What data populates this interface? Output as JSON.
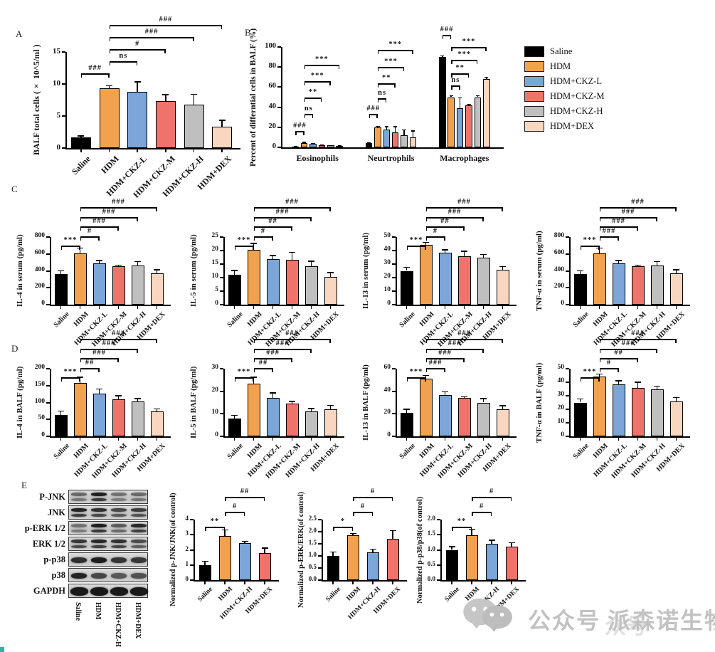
{
  "panels": {
    "a": "A",
    "b": "B",
    "c": "C",
    "d": "D",
    "e": "E"
  },
  "legend": {
    "items": [
      {
        "label": "Saline",
        "color": "#000000"
      },
      {
        "label": "HDM",
        "color": "#F2A24E"
      },
      {
        "label": "HDM+CKZ-L",
        "color": "#7CA5D8"
      },
      {
        "label": "HDM+CKZ-M",
        "color": "#F0736B"
      },
      {
        "label": "HDM+CKZ-H",
        "color": "#BFBFBF"
      },
      {
        "label": "HDM+DEX",
        "color": "#F9D6C0"
      }
    ]
  },
  "chart_data": [
    {
      "id": "A",
      "type": "bar",
      "ylabel": "BALF total cells (× 10^5/ml )",
      "categories": [
        "Saline",
        "HDM",
        "HDM+CKZ-L",
        "HDM+CKZ-M",
        "HDM+CKZ-H",
        "HDM+DEX"
      ],
      "values": [
        1.7,
        9.3,
        8.8,
        7.3,
        6.8,
        3.3
      ],
      "errors": [
        0.3,
        0.5,
        1.6,
        1.1,
        1.7,
        1.1
      ],
      "bar_colors": [
        "#000000",
        "#F2A24E",
        "#7CA5D8",
        "#F0736B",
        "#BFBFBF",
        "#F9D6C0"
      ],
      "yticks": [
        "0",
        "5",
        "10",
        "15"
      ],
      "ymax": 15,
      "sig": [
        {
          "from": 0,
          "to": 1,
          "label": "###",
          "row": 0
        },
        {
          "from": 1,
          "to": 2,
          "label": "ns",
          "row": 1
        },
        {
          "from": 1,
          "to": 3,
          "label": "#",
          "row": 2
        },
        {
          "from": 1,
          "to": 4,
          "label": "###",
          "row": 3
        },
        {
          "from": 1,
          "to": 5,
          "label": "###",
          "row": 4
        }
      ]
    },
    {
      "id": "B",
      "type": "grouped-bar",
      "ylabel": "Percent of differntial cells in BALF (%)",
      "series_names": [
        "Saline",
        "HDM",
        "HDM+CKZ-L",
        "HDM+CKZ-M",
        "HDM+CKZ-H",
        "HDM+DEX"
      ],
      "bar_colors": [
        "#000000",
        "#F2A24E",
        "#7CA5D8",
        "#F0736B",
        "#BFBFBF",
        "#F9D6C0"
      ],
      "yticks": [
        "0",
        "20",
        "40",
        "60",
        "80",
        "100"
      ],
      "ymax": 100,
      "legend_position": "right",
      "groups": [
        {
          "label": "Eosinophils",
          "values": [
            1,
            4.5,
            3.6,
            2,
            1.8,
            1.6
          ],
          "errors": [
            0.3,
            0.9,
            0.7,
            0.5,
            0.5,
            0.6
          ],
          "sig": [
            {
              "from": 0,
              "to": 1,
              "label": "###",
              "yf": 0.16
            },
            {
              "from": 1,
              "to": 2,
              "label": "ns",
              "yf": 0.33
            },
            {
              "from": 1,
              "to": 3,
              "label": "**",
              "yf": 0.5
            },
            {
              "from": 1,
              "to": 4,
              "label": "***",
              "yf": 0.66
            },
            {
              "from": 1,
              "to": 5,
              "label": "***",
              "yf": 0.82
            }
          ]
        },
        {
          "label": "Neurtrophils",
          "values": [
            4,
            20,
            18,
            15,
            12,
            10
          ],
          "errors": [
            1,
            1.5,
            3,
            6,
            6,
            7
          ],
          "sig": [
            {
              "from": 0,
              "to": 1,
              "label": "###",
              "yf": 0.33
            },
            {
              "from": 1,
              "to": 2,
              "label": "ns",
              "yf": 0.49
            },
            {
              "from": 1,
              "to": 3,
              "label": "**",
              "yf": 0.64
            },
            {
              "from": 1,
              "to": 4,
              "label": "***",
              "yf": 0.8
            },
            {
              "from": 1,
              "to": 5,
              "label": "***",
              "yf": 0.97
            }
          ]
        },
        {
          "label": "Macrophages",
          "values": [
            90,
            50,
            39,
            42,
            50,
            68
          ],
          "errors": [
            1.5,
            2,
            11,
            1.5,
            2,
            2.5
          ],
          "sig": [
            {
              "from": 0,
              "to": 1,
              "label": "###",
              "yf": 1.12
            },
            {
              "from": 1,
              "to": 2,
              "label": "ns",
              "yf": 0.62
            },
            {
              "from": 1,
              "to": 3,
              "label": "**",
              "yf": 0.74
            },
            {
              "from": 1,
              "to": 4,
              "label": "***",
              "yf": 0.87
            },
            {
              "from": 1,
              "to": 5,
              "label": "***",
              "yf": 1.0
            }
          ]
        }
      ]
    },
    {
      "id": "C1",
      "type": "bar",
      "ylabel": "IL-4 in serum (pg/ml)",
      "categories": [
        "Saline",
        "HDM",
        "HDM+CKZ-L",
        "HDM+CKZ-M",
        "HDM+CKZ-H",
        "HDM+DEX"
      ],
      "values": [
        360,
        610,
        490,
        455,
        460,
        370
      ],
      "errors": [
        45,
        65,
        40,
        20,
        55,
        50
      ],
      "bar_colors": [
        "#000000",
        "#F2A24E",
        "#7CA5D8",
        "#F0736B",
        "#BFBFBF",
        "#F9D6C0"
      ],
      "yticks": [
        "0",
        "200",
        "400",
        "600",
        "800"
      ],
      "ymax": 800,
      "sig": [
        {
          "from": 0,
          "to": 1,
          "label": "***",
          "row": 0
        },
        {
          "from": 1,
          "to": 2,
          "label": "#",
          "row": 1
        },
        {
          "from": 1,
          "to": 3,
          "label": "###",
          "row": 2
        },
        {
          "from": 1,
          "to": 4,
          "label": "###",
          "row": 3
        },
        {
          "from": 1,
          "to": 5,
          "label": "###",
          "row": 4
        }
      ]
    },
    {
      "id": "C2",
      "type": "bar",
      "ylabel": "IL-5 in serum (pg/ml)",
      "categories": [
        "Saline",
        "HDM",
        "HDM+CKZ-L",
        "HDM+CKZ-M",
        "HDM+CKZ-H",
        "HDM+DEX"
      ],
      "values": [
        11,
        20.3,
        16.8,
        16.5,
        14.2,
        10.3
      ],
      "errors": [
        1.8,
        2.5,
        1.5,
        3,
        2,
        1.8
      ],
      "bar_colors": [
        "#000000",
        "#F2A24E",
        "#7CA5D8",
        "#F0736B",
        "#BFBFBF",
        "#F9D6C0"
      ],
      "yticks": [
        "0",
        "5",
        "10",
        "15",
        "20",
        "25"
      ],
      "ymax": 25,
      "sig": [
        {
          "from": 0,
          "to": 1,
          "label": "***",
          "row": 0
        },
        {
          "from": 1,
          "to": 2,
          "label": "#",
          "row": 1
        },
        {
          "from": 1,
          "to": 3,
          "label": "##",
          "row": 2
        },
        {
          "from": 1,
          "to": 4,
          "label": "###",
          "row": 3
        },
        {
          "from": 1,
          "to": 5,
          "label": "###",
          "row": 4
        }
      ]
    },
    {
      "id": "C3",
      "type": "bar",
      "ylabel": "IL-13 in serum (pg/ml)",
      "categories": [
        "Saline",
        "HDM",
        "HDM+CKZ-L",
        "HDM+CKZ-M",
        "HDM+CKZ-H",
        "HDM+DEX"
      ],
      "values": [
        25,
        44,
        38.5,
        36,
        35,
        26
      ],
      "errors": [
        3,
        2.5,
        2.5,
        4,
        2.5,
        2.5
      ],
      "bar_colors": [
        "#000000",
        "#F2A24E",
        "#7CA5D8",
        "#F0736B",
        "#BFBFBF",
        "#F9D6C0"
      ],
      "yticks": [
        "0",
        "10",
        "20",
        "30",
        "40",
        "50"
      ],
      "ymax": 50,
      "sig": [
        {
          "from": 0,
          "to": 1,
          "label": "***",
          "row": 0
        },
        {
          "from": 1,
          "to": 2,
          "label": "#",
          "row": 1
        },
        {
          "from": 1,
          "to": 3,
          "label": "##",
          "row": 2
        },
        {
          "from": 1,
          "to": 4,
          "label": "###",
          "row": 3
        },
        {
          "from": 1,
          "to": 5,
          "label": "###",
          "row": 4
        }
      ]
    },
    {
      "id": "C4",
      "type": "bar",
      "ylabel": "TNF-α in serum (pg/ml)",
      "categories": [
        "Saline",
        "HDM",
        "HDM+CKZ-L",
        "HDM+CKZ-M",
        "HDM+CKZ-H",
        "HDM+DEX"
      ],
      "values": [
        360,
        610,
        490,
        455,
        460,
        370
      ],
      "errors": [
        45,
        65,
        40,
        20,
        55,
        50
      ],
      "bar_colors": [
        "#000000",
        "#F2A24E",
        "#7CA5D8",
        "#F0736B",
        "#BFBFBF",
        "#F9D6C0"
      ],
      "yticks": [
        "0",
        "200",
        "400",
        "600",
        "800"
      ],
      "ymax": 800,
      "sig": [
        {
          "from": 0,
          "to": 1,
          "label": "***",
          "row": 0
        },
        {
          "from": 1,
          "to": 2,
          "label": "###",
          "row": 1
        },
        {
          "from": 1,
          "to": 3,
          "label": "###",
          "row": 2
        },
        {
          "from": 1,
          "to": 4,
          "label": "###",
          "row": 3
        },
        {
          "from": 1,
          "to": 5,
          "label": "###",
          "row": 4
        }
      ]
    },
    {
      "id": "D1",
      "type": "bar",
      "ylabel": "IL-4 in BALF (pg/ml)",
      "categories": [
        "Saline",
        "HDM",
        "HDM+CKZ-L",
        "HDM+CKZ-M",
        "HDM+CKZ-H",
        "HDM+DEX"
      ],
      "values": [
        64,
        158,
        127,
        110,
        103,
        73
      ],
      "errors": [
        12,
        18,
        15,
        12,
        10,
        10
      ],
      "bar_colors": [
        "#000000",
        "#F2A24E",
        "#7CA5D8",
        "#F0736B",
        "#BFBFBF",
        "#F9D6C0"
      ],
      "yticks": [
        "0",
        "50",
        "100",
        "150",
        "200"
      ],
      "ymax": 200,
      "sig": [
        {
          "from": 0,
          "to": 1,
          "label": "***",
          "row": 0
        },
        {
          "from": 1,
          "to": 2,
          "label": "##",
          "row": 1
        },
        {
          "from": 1,
          "to": 3,
          "label": "###",
          "row": 2
        },
        {
          "from": 1,
          "to": 4,
          "label": "###",
          "row": 3
        },
        {
          "from": 1,
          "to": 5,
          "label": "###",
          "row": 4
        }
      ]
    },
    {
      "id": "D2",
      "type": "bar",
      "ylabel": "IL-5 in BALF (pg/ml)",
      "categories": [
        "Saline",
        "HDM",
        "HDM+CKZ-L",
        "HDM+CKZ-M",
        "HDM+CKZ-H",
        "HDM+DEX"
      ],
      "values": [
        7.8,
        23.5,
        17,
        14.5,
        11,
        12
      ],
      "errors": [
        1.8,
        3,
        2.5,
        1.2,
        1.5,
        2
      ],
      "bar_colors": [
        "#000000",
        "#F2A24E",
        "#7CA5D8",
        "#F0736B",
        "#BFBFBF",
        "#F9D6C0"
      ],
      "yticks": [
        "0",
        "10",
        "20",
        "30"
      ],
      "ymax": 30,
      "sig": [
        {
          "from": 0,
          "to": 1,
          "label": "***",
          "row": 0
        },
        {
          "from": 1,
          "to": 2,
          "label": "##",
          "row": 1
        },
        {
          "from": 1,
          "to": 3,
          "label": "###",
          "row": 2
        },
        {
          "from": 1,
          "to": 4,
          "label": "###",
          "row": 3
        },
        {
          "from": 1,
          "to": 5,
          "label": "###",
          "row": 4
        }
      ]
    },
    {
      "id": "D3",
      "type": "bar",
      "ylabel": "IL-13 in BALF (pg/ml)",
      "categories": [
        "Saline",
        "HDM",
        "HDM+CKZ-L",
        "HDM+CKZ-M",
        "HDM+CKZ-H",
        "HDM+DEX"
      ],
      "values": [
        21,
        51,
        36.5,
        34,
        30,
        24
      ],
      "errors": [
        3.5,
        3.5,
        3.5,
        1.5,
        4,
        3.5
      ],
      "bar_colors": [
        "#000000",
        "#F2A24E",
        "#7CA5D8",
        "#F0736B",
        "#BFBFBF",
        "#F9D6C0"
      ],
      "yticks": [
        "0",
        "20",
        "40",
        "60"
      ],
      "ymax": 60,
      "sig": [
        {
          "from": 0,
          "to": 1,
          "label": "***",
          "row": 0
        },
        {
          "from": 1,
          "to": 2,
          "label": "###",
          "row": 1
        },
        {
          "from": 1,
          "to": 3,
          "label": "###",
          "row": 2
        },
        {
          "from": 1,
          "to": 4,
          "label": "###",
          "row": 3
        },
        {
          "from": 1,
          "to": 5,
          "label": "###",
          "row": 4
        }
      ]
    },
    {
      "id": "D4",
      "type": "bar",
      "ylabel": "TNF-α in BALF (pg/ml)",
      "categories": [
        "Saline",
        "HDM",
        "HDM+CKZ-L",
        "HDM+CKZ-M",
        "HDM+CKZ-H",
        "HDM+DEX"
      ],
      "values": [
        25,
        44,
        38.5,
        36,
        35,
        26
      ],
      "errors": [
        3,
        2.5,
        3,
        4.5,
        2.5,
        3
      ],
      "bar_colors": [
        "#000000",
        "#F2A24E",
        "#7CA5D8",
        "#F0736B",
        "#BFBFBF",
        "#F9D6C0"
      ],
      "yticks": [
        "0",
        "10",
        "20",
        "30",
        "40",
        "50"
      ],
      "ymax": 50,
      "sig": [
        {
          "from": 0,
          "to": 1,
          "label": "***",
          "row": 0
        },
        {
          "from": 1,
          "to": 2,
          "label": "#",
          "row": 1
        },
        {
          "from": 1,
          "to": 3,
          "label": "##",
          "row": 2
        },
        {
          "from": 1,
          "to": 4,
          "label": "###",
          "row": 3
        },
        {
          "from": 1,
          "to": 5,
          "label": "###",
          "row": 4
        }
      ]
    },
    {
      "id": "E1",
      "type": "bar",
      "ylabel": "Normalized p-JNK/JNK(of control)",
      "categories": [
        "Saline",
        "HDM",
        "HDM+CKZ-H",
        "HDM+DEX"
      ],
      "values": [
        1,
        2.9,
        2.45,
        1.8
      ],
      "errors": [
        0.28,
        0.45,
        0.15,
        0.35
      ],
      "bar_colors": [
        "#000000",
        "#F2A24E",
        "#7CA5D8",
        "#F0736B"
      ],
      "yticks": [
        "0",
        "1",
        "2",
        "3",
        "4"
      ],
      "ymax": 4,
      "sig": [
        {
          "from": 0,
          "to": 1,
          "label": "**",
          "row": 0
        },
        {
          "from": 1,
          "to": 2,
          "label": "#",
          "row": 1
        },
        {
          "from": 1,
          "to": 3,
          "label": "##",
          "row": 2
        }
      ]
    },
    {
      "id": "E2",
      "type": "bar",
      "ylabel": "Normalized p-ERK/ERK(of control)",
      "categories": [
        "Saline",
        "HDM",
        "HDM+CKZ-H",
        "HDM+DEX"
      ],
      "values": [
        1,
        1.85,
        1.15,
        1.7
      ],
      "errors": [
        0.18,
        0.1,
        0.15,
        0.37
      ],
      "bar_colors": [
        "#000000",
        "#F2A24E",
        "#7CA5D8",
        "#F0736B"
      ],
      "yticks": [
        "0.0",
        "0.5",
        "1.0",
        "1.5",
        "2.0",
        "2.5"
      ],
      "ymax": 2.5,
      "sig": [
        {
          "from": 0,
          "to": 1,
          "label": "*",
          "row": 0
        },
        {
          "from": 1,
          "to": 2,
          "label": "#",
          "row": 1
        },
        {
          "from": 1,
          "to": 3,
          "label": "#",
          "row": 2
        }
      ]
    },
    {
      "id": "E3",
      "type": "bar",
      "ylabel": "Normalized p-p38/p38(of control)",
      "categories": [
        "Saline",
        "HDM",
        "HDM+CKZ-H",
        "HDM+DEX"
      ],
      "values": [
        1,
        1.48,
        1.2,
        1.1
      ],
      "errors": [
        0.12,
        0.22,
        0.14,
        0.15
      ],
      "bar_colors": [
        "#000000",
        "#F2A24E",
        "#7CA5D8",
        "#F0736B"
      ],
      "yticks": [
        "0.0",
        "0.5",
        "1.0",
        "1.5",
        "2.0"
      ],
      "ymax": 2,
      "sig": [
        {
          "from": 0,
          "to": 1,
          "label": "**",
          "row": 0
        },
        {
          "from": 1,
          "to": 2,
          "label": "#",
          "row": 1
        },
        {
          "from": 1,
          "to": 3,
          "label": "#",
          "row": 2
        }
      ]
    }
  ],
  "blot": {
    "rows": [
      {
        "label": "P-JNK",
        "doublet": true,
        "weights": [
          0.55,
          0.95,
          0.5,
          0.55
        ]
      },
      {
        "label": "JNK",
        "doublet": true,
        "weights": [
          0.92,
          0.85,
          0.72,
          0.78
        ]
      },
      {
        "label": "p-ERK 1/2",
        "doublet": true,
        "weights": [
          0.5,
          0.95,
          0.62,
          0.9
        ]
      },
      {
        "label": "ERK 1/2",
        "doublet": true,
        "weights": [
          0.82,
          0.9,
          0.85,
          0.7
        ]
      },
      {
        "label": "p-p38",
        "doublet": false,
        "weights": [
          0.85,
          0.95,
          0.82,
          0.8
        ]
      },
      {
        "label": "p38",
        "doublet": false,
        "weights": [
          0.92,
          0.72,
          0.62,
          0.66
        ]
      },
      {
        "label": "GAPDH",
        "doublet": false,
        "thick": true,
        "weights": [
          0.98,
          0.98,
          0.98,
          0.98
        ]
      }
    ],
    "lanes": [
      "Saline",
      "HDM",
      "HDM+CKZ-H",
      "HDM+DEX"
    ]
  },
  "watermark": {
    "text": "公众号 派森诺生物",
    "echo": "众号"
  }
}
